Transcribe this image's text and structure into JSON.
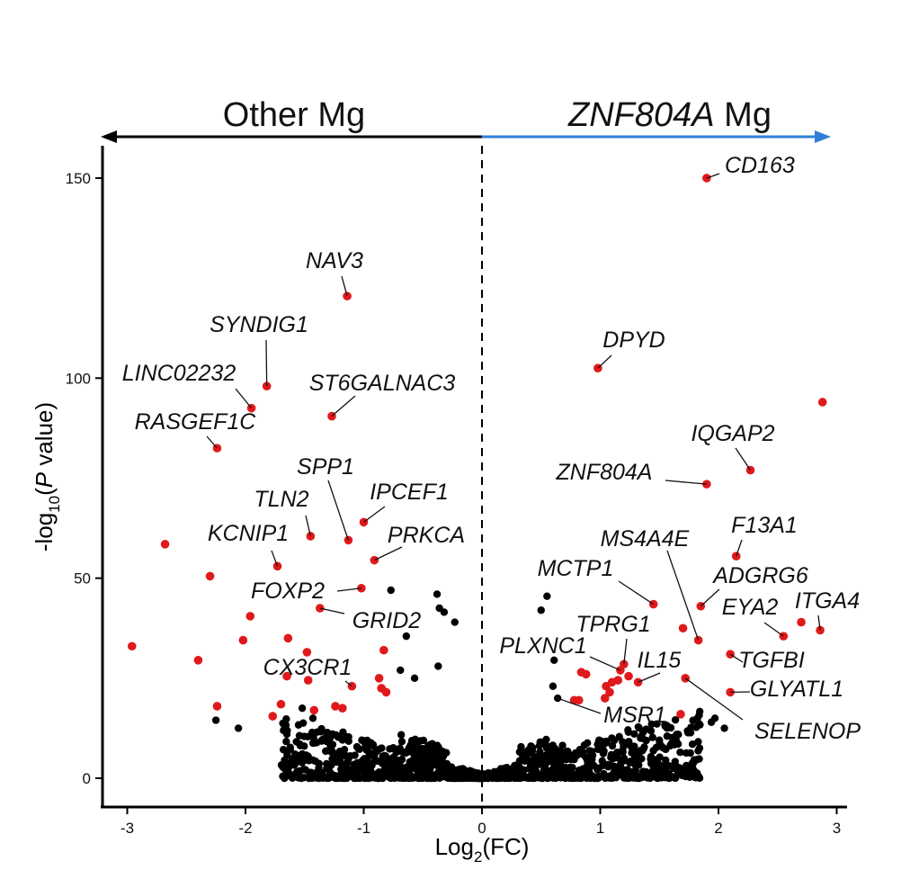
{
  "chart_data": {
    "type": "scatter",
    "title": "",
    "xlabel_main": "Log",
    "xlabel_sub": "2",
    "xlabel_tail": "(FC)",
    "ylabel_head": "-log",
    "ylabel_sub": "10",
    "ylabel_open": "(",
    "ylabel_italic": "P",
    "ylabel_tail": " value)",
    "left_header": "Other Mg",
    "right_header_italic": "ZNF804A",
    "right_header_tail": " Mg",
    "xlim": [
      -3.3,
      3.1
    ],
    "ylim": [
      -7,
      162
    ],
    "x_ticks": [
      -3,
      -2,
      -1,
      0,
      1,
      2,
      3
    ],
    "y_ticks": [
      0,
      50,
      100,
      150
    ],
    "grid": false,
    "legend": "none",
    "threshold_line_x": 0,
    "colors": {
      "significant": "#e0191c",
      "not_significant": "#000000",
      "left_arrow": "#000000",
      "right_arrow": "#2f7fd8"
    },
    "series": [
      {
        "name": "",
        "role": "significant",
        "points": [
          {
            "x": 1.9,
            "y": 150
          },
          {
            "x": -1.14,
            "y": 120.5
          },
          {
            "x": 0.98,
            "y": 102.5
          },
          {
            "x": -1.82,
            "y": 98
          },
          {
            "x": 2.88,
            "y": 94
          },
          {
            "x": -1.95,
            "y": 92.5
          },
          {
            "x": -1.27,
            "y": 90.5
          },
          {
            "x": -2.24,
            "y": 82.5
          },
          {
            "x": 2.27,
            "y": 77
          },
          {
            "x": 1.9,
            "y": 73.5
          },
          {
            "x": -1.0,
            "y": 64
          },
          {
            "x": -1.13,
            "y": 59.5
          },
          {
            "x": -1.45,
            "y": 60.5
          },
          {
            "x": -2.68,
            "y": 58.5
          },
          {
            "x": 2.15,
            "y": 55.5
          },
          {
            "x": -0.91,
            "y": 54.5
          },
          {
            "x": -1.73,
            "y": 53
          },
          {
            "x": -2.3,
            "y": 50.5
          },
          {
            "x": -1.02,
            "y": 47.5
          },
          {
            "x": 1.45,
            "y": 43.5
          },
          {
            "x": 1.85,
            "y": 43
          },
          {
            "x": -1.37,
            "y": 42.5
          },
          {
            "x": 2.7,
            "y": 39
          },
          {
            "x": -1.96,
            "y": 40.5
          },
          {
            "x": 2.86,
            "y": 37
          },
          {
            "x": 2.55,
            "y": 35.5
          },
          {
            "x": 1.7,
            "y": 37.5
          },
          {
            "x": -1.64,
            "y": 35
          },
          {
            "x": -2.02,
            "y": 34.5
          },
          {
            "x": -2.96,
            "y": 33
          },
          {
            "x": 1.83,
            "y": 34.5
          },
          {
            "x": -1.48,
            "y": 31.5
          },
          {
            "x": -0.83,
            "y": 32
          },
          {
            "x": 2.1,
            "y": 31
          },
          {
            "x": 1.2,
            "y": 28.5
          },
          {
            "x": 1.17,
            "y": 27
          },
          {
            "x": -2.4,
            "y": 29.5
          },
          {
            "x": 0.84,
            "y": 26.5
          },
          {
            "x": 0.88,
            "y": 26
          },
          {
            "x": 1.24,
            "y": 25.5
          },
          {
            "x": 1.72,
            "y": 25
          },
          {
            "x": 1.15,
            "y": 24.5
          },
          {
            "x": 1.1,
            "y": 24
          },
          {
            "x": 1.32,
            "y": 24
          },
          {
            "x": 1.05,
            "y": 23
          },
          {
            "x": -1.65,
            "y": 25.5
          },
          {
            "x": -0.87,
            "y": 25
          },
          {
            "x": -1.47,
            "y": 24.5
          },
          {
            "x": -1.1,
            "y": 23
          },
          {
            "x": -0.85,
            "y": 22.5
          },
          {
            "x": -0.81,
            "y": 21.5
          },
          {
            "x": 1.08,
            "y": 21.5
          },
          {
            "x": 2.1,
            "y": 21.5
          },
          {
            "x": 1.04,
            "y": 20
          },
          {
            "x": 0.82,
            "y": 19.5
          },
          {
            "x": 0.78,
            "y": 19.5
          },
          {
            "x": -1.7,
            "y": 18.5
          },
          {
            "x": -1.24,
            "y": 18
          },
          {
            "x": -1.18,
            "y": 17.5
          },
          {
            "x": -2.24,
            "y": 18
          },
          {
            "x": -1.42,
            "y": 17
          },
          {
            "x": -1.77,
            "y": 15.5
          },
          {
            "x": 1.68,
            "y": 16
          }
        ]
      },
      {
        "name": "",
        "role": "not_significant",
        "seed": 42,
        "points": [
          {
            "x": 0.55,
            "y": 45.5
          },
          {
            "x": -0.38,
            "y": 46
          },
          {
            "x": -0.77,
            "y": 47
          },
          {
            "x": 0.5,
            "y": 42
          },
          {
            "x": -0.36,
            "y": 42.5
          },
          {
            "x": -0.32,
            "y": 41.5
          },
          {
            "x": -0.23,
            "y": 39
          },
          {
            "x": -0.64,
            "y": 35.5
          },
          {
            "x": -0.69,
            "y": 27
          },
          {
            "x": -0.37,
            "y": 28
          },
          {
            "x": -0.57,
            "y": 25
          },
          {
            "x": 0.61,
            "y": 29.5
          },
          {
            "x": 0.6,
            "y": 23
          },
          {
            "x": -2.25,
            "y": 14.5
          },
          {
            "x": -2.06,
            "y": 12.5
          },
          {
            "x": -1.65,
            "y": 11
          },
          {
            "x": 1.94,
            "y": 14
          },
          {
            "x": 1.97,
            "y": 15
          },
          {
            "x": 1.78,
            "y": 8.5
          },
          {
            "x": 1.84,
            "y": 7.5
          },
          {
            "x": 2.05,
            "y": 12.5
          },
          {
            "x": -1.52,
            "y": 17.5
          },
          {
            "x": -1.43,
            "y": 15
          },
          {
            "x": 1.55,
            "y": 13
          },
          {
            "x": 1.5,
            "y": 9.5
          },
          {
            "x": -1.58,
            "y": 6
          },
          {
            "x": 0.64,
            "y": 20
          }
        ]
      }
    ],
    "annotations": [
      {
        "label": "CD163",
        "x": 1.9,
        "y": 150
      },
      {
        "label": "NAV3",
        "x": -1.14,
        "y": 120.5
      },
      {
        "label": "DPYD",
        "x": 0.98,
        "y": 102.5
      },
      {
        "label": "SYNDIG1",
        "x": -1.82,
        "y": 98
      },
      {
        "label": "LINC02232",
        "x": -1.95,
        "y": 92.5
      },
      {
        "label": "ST6GALNAC3",
        "x": -1.27,
        "y": 90.5
      },
      {
        "label": "RASGEF1C",
        "x": -2.24,
        "y": 82.5
      },
      {
        "label": "IQGAP2",
        "x": 2.27,
        "y": 77
      },
      {
        "label": "ZNF804A",
        "x": 1.9,
        "y": 73.5
      },
      {
        "label": "SPP1",
        "x": -1.13,
        "y": 59.5
      },
      {
        "label": "IPCEF1",
        "x": -1.0,
        "y": 64
      },
      {
        "label": "TLN2",
        "x": -1.45,
        "y": 60.5
      },
      {
        "label": "KCNIP1",
        "x": -1.73,
        "y": 53
      },
      {
        "label": "PRKCA",
        "x": -0.91,
        "y": 54.5
      },
      {
        "label": "F13A1",
        "x": 2.15,
        "y": 55.5
      },
      {
        "label": "MS4A4E",
        "x": 1.83,
        "y": 34.5
      },
      {
        "label": "MCTP1",
        "x": 1.45,
        "y": 43.5
      },
      {
        "label": "ADGRG6",
        "x": 1.85,
        "y": 43
      },
      {
        "label": "FOXP2",
        "x": -1.02,
        "y": 47.5
      },
      {
        "label": "GRID2",
        "x": -1.37,
        "y": 42.5
      },
      {
        "label": "EYA2",
        "x": 2.55,
        "y": 35.5
      },
      {
        "label": "ITGA4",
        "x": 2.86,
        "y": 37
      },
      {
        "label": "TPRG1",
        "x": 1.2,
        "y": 28.5
      },
      {
        "label": "PLXNC1",
        "x": 1.17,
        "y": 27
      },
      {
        "label": "IL15",
        "x": 1.32,
        "y": 24
      },
      {
        "label": "TGFBI",
        "x": 2.1,
        "y": 31
      },
      {
        "label": "CX3CR1",
        "x": -1.1,
        "y": 23
      },
      {
        "label": "GLYATL1",
        "x": 2.1,
        "y": 21.5
      },
      {
        "label": "MSR1",
        "x": 0.64,
        "y": 20
      },
      {
        "label": "SELENOP",
        "x": 1.72,
        "y": 25
      }
    ]
  }
}
